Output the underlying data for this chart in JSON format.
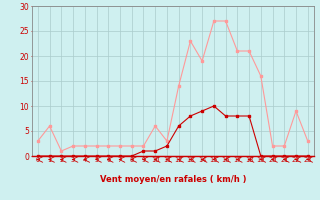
{
  "x": [
    0,
    1,
    2,
    3,
    4,
    5,
    6,
    7,
    8,
    9,
    10,
    11,
    12,
    13,
    14,
    15,
    16,
    17,
    18,
    19,
    20,
    21,
    22,
    23
  ],
  "rafales": [
    3,
    6,
    1,
    2,
    2,
    2,
    2,
    2,
    2,
    2,
    6,
    3,
    14,
    23,
    19,
    27,
    27,
    21,
    21,
    16,
    2,
    2,
    9,
    3
  ],
  "moyen": [
    0,
    0,
    0,
    0,
    0,
    0,
    0,
    0,
    0,
    1,
    1,
    2,
    6,
    8,
    9,
    10,
    8,
    8,
    8,
    0,
    0,
    0,
    0,
    0
  ],
  "line_rafales_color": "#ff9999",
  "line_moyen_color": "#cc0000",
  "bg_color": "#cff0f0",
  "grid_color": "#aacccc",
  "xlabel": "Vent moyen/en rafales ( km/h )",
  "xlabel_color": "#cc0000",
  "tick_color": "#cc0000",
  "ylim": [
    0,
    30
  ],
  "yticks": [
    0,
    5,
    10,
    15,
    20,
    25,
    30
  ],
  "spine_color": "#888888",
  "arrow_color": "#cc0000"
}
